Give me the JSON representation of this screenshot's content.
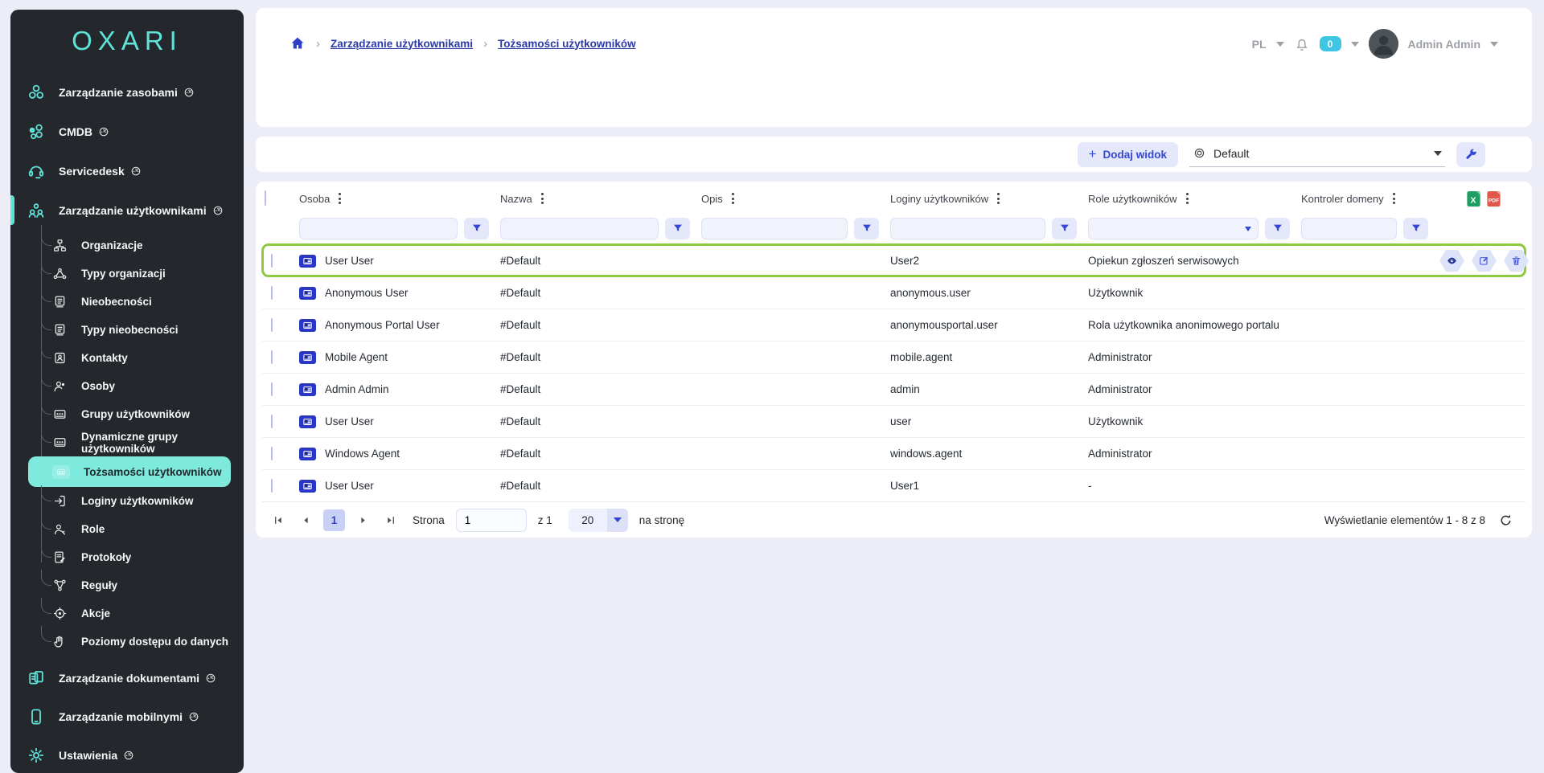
{
  "app": {
    "logo": "OXARI"
  },
  "colors": {
    "sidebar_bg": "#24282C",
    "teal": "#5FE2D8",
    "selected_pill": "#7EE9DD",
    "accent_blue": "#3647D6",
    "link_blue": "#2C3AA8",
    "highlight_green": "#8CCB40",
    "badge_cyan": "#3FC6E4",
    "excel_green": "#1E9E63",
    "pdf_red": "#E2574C",
    "page_bg": "#ECEDF6"
  },
  "sidebar": {
    "top_items": [
      {
        "label": "Zarządzanie zasobami",
        "icon": "assets",
        "gauge": true,
        "active": false
      },
      {
        "label": "CMDB",
        "icon": "cmdb",
        "gauge": true,
        "active": false
      },
      {
        "label": "Servicedesk",
        "icon": "servicedesk",
        "gauge": true,
        "active": false
      },
      {
        "label": "Zarządzanie użytkownikami",
        "icon": "people",
        "gauge": true,
        "active": true
      }
    ],
    "sub_items": [
      {
        "label": "Organizacje",
        "icon": "sitemap",
        "selected": false
      },
      {
        "label": "Typy organizacji",
        "icon": "orgtype",
        "selected": false
      },
      {
        "label": "Nieobecności",
        "icon": "doc",
        "selected": false
      },
      {
        "label": "Typy nieobecności",
        "icon": "doc",
        "selected": false
      },
      {
        "label": "Kontakty",
        "icon": "contact",
        "selected": false
      },
      {
        "label": "Osoby",
        "icon": "person",
        "selected": false
      },
      {
        "label": "Grupy użytkowników",
        "icon": "group",
        "selected": false
      },
      {
        "label": "Dynamiczne grupy użytkowników",
        "icon": "group",
        "selected": false
      },
      {
        "label": "Tożsamości użytkowników",
        "icon": "idcard",
        "selected": true
      },
      {
        "label": "Loginy użytkowników",
        "icon": "login",
        "selected": false
      },
      {
        "label": "Role",
        "icon": "role",
        "selected": false
      },
      {
        "label": "Protokoły",
        "icon": "protocol",
        "selected": false
      },
      {
        "label": "Reguły",
        "icon": "rules",
        "selected": false
      },
      {
        "label": "Akcje",
        "icon": "target",
        "selected": false
      },
      {
        "label": "Poziomy dostępu do danych",
        "icon": "hand",
        "selected": false
      }
    ],
    "bottom_items": [
      {
        "label": "Zarządzanie dokumentami",
        "icon": "docs",
        "gauge": true
      },
      {
        "label": "Zarządzanie mobilnymi",
        "icon": "mobile",
        "gauge": true
      },
      {
        "label": "Ustawienia",
        "icon": "gear",
        "gauge": true
      }
    ]
  },
  "header": {
    "breadcrumb": {
      "link1": "Zarządzanie użytkownikami",
      "link2": "Tożsamości użytkowników"
    },
    "locale": "PL",
    "notification_count": "0",
    "user_name": "Admin Admin"
  },
  "toolbar": {
    "add_view_label": "Dodaj widok",
    "add_view_plus": "+",
    "view_select_value": "Default"
  },
  "table": {
    "columns": [
      {
        "label": "Osoba"
      },
      {
        "label": "Nazwa"
      },
      {
        "label": "Opis"
      },
      {
        "label": "Loginy użytkowników"
      },
      {
        "label": "Role użytkowników",
        "filter_dropdown": true
      },
      {
        "label": "Kontroler domeny"
      }
    ],
    "rows": [
      {
        "osoba": "User User",
        "nazwa": "#Default",
        "opis": "",
        "loginy": "User2",
        "role": "Opiekun zgłoszeń serwisowych",
        "kontroler": "",
        "highlighted": true,
        "actions": [
          "view",
          "edit",
          "delete"
        ]
      },
      {
        "osoba": "Anonymous User",
        "nazwa": "#Default",
        "opis": "",
        "loginy": "anonymous.user",
        "role": "Użytkownik",
        "kontroler": "",
        "highlighted": false
      },
      {
        "osoba": "Anonymous Portal User",
        "nazwa": "#Default",
        "opis": "",
        "loginy": "anonymousportal.user",
        "role": "Rola użytkownika anonimowego portalu",
        "kontroler": "",
        "highlighted": false
      },
      {
        "osoba": "Mobile Agent",
        "nazwa": "#Default",
        "opis": "",
        "loginy": "mobile.agent",
        "role": "Administrator",
        "kontroler": "",
        "highlighted": false
      },
      {
        "osoba": "Admin Admin",
        "nazwa": "#Default",
        "opis": "",
        "loginy": "admin",
        "role": "Administrator",
        "kontroler": "",
        "highlighted": false
      },
      {
        "osoba": "User User",
        "nazwa": "#Default",
        "opis": "",
        "loginy": "user",
        "role": "Użytkownik",
        "kontroler": "",
        "highlighted": false
      },
      {
        "osoba": "Windows Agent",
        "nazwa": "#Default",
        "opis": "",
        "loginy": "windows.agent",
        "role": "Administrator",
        "kontroler": "",
        "highlighted": false
      },
      {
        "osoba": "User User",
        "nazwa": "#Default",
        "opis": "",
        "loginy": "User1",
        "role": "-",
        "kontroler": "",
        "highlighted": false
      }
    ],
    "export": {
      "excel_label": "X",
      "pdf_label": "PDF"
    }
  },
  "pagination": {
    "page_label": "Strona",
    "page_value": "1",
    "of_label": "z 1",
    "page_size": "20",
    "per_page_label": "na stronę",
    "current_page": "1",
    "summary": "Wyświetlanie elementów 1 - 8 z 8"
  }
}
